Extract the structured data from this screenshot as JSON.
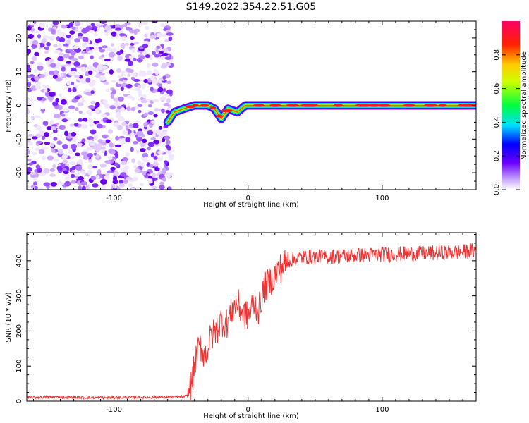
{
  "title": "S149.2022.354.22.51.G05",
  "chart_data": [
    {
      "type": "heatmap",
      "name": "spectrogram",
      "xlabel": "Height of straight line (km)",
      "ylabel": "Frequency (Hz)",
      "xlim": [
        -165,
        170
      ],
      "ylim": [
        -25,
        25
      ],
      "xticks": [
        -100,
        0,
        100
      ],
      "xtick_labels": [
        "-100",
        "0",
        "100"
      ],
      "yticks": [
        -20,
        -10,
        0,
        10,
        20
      ],
      "ytick_labels": [
        "-20",
        "-10",
        "0",
        "10",
        "20"
      ],
      "noise_region_x": [
        -165,
        -57
      ],
      "ridge": [
        {
          "x": -60,
          "y": -5
        },
        {
          "x": -55,
          "y": -2
        },
        {
          "x": -48,
          "y": -1
        },
        {
          "x": -40,
          "y": 0
        },
        {
          "x": -30,
          "y": 0
        },
        {
          "x": -25,
          "y": -1
        },
        {
          "x": -20,
          "y": -4
        },
        {
          "x": -15,
          "y": -1
        },
        {
          "x": -8,
          "y": -2
        },
        {
          "x": -2,
          "y": 0
        },
        {
          "x": 10,
          "y": 0
        },
        {
          "x": 50,
          "y": 0
        },
        {
          "x": 100,
          "y": 0
        },
        {
          "x": 170,
          "y": 0
        }
      ]
    },
    {
      "type": "line",
      "name": "snr",
      "xlabel": "Height of straight line (km)",
      "ylabel": "SNR (10 * v/v)",
      "xlim": [
        -165,
        170
      ],
      "ylim": [
        0,
        480
      ],
      "xticks": [
        -100,
        0,
        100
      ],
      "xtick_labels": [
        "-100",
        "0",
        "100"
      ],
      "yticks": [
        0,
        100,
        200,
        300,
        400
      ],
      "ytick_labels": [
        "0",
        "100",
        "200",
        "300",
        "400"
      ],
      "series": [
        {
          "name": "SNR",
          "color": "#ee3333",
          "x": [
            -165,
            -150,
            -120,
            -80,
            -50,
            -45,
            -42,
            -40,
            -36,
            -32,
            -28,
            -24,
            -20,
            -16,
            -12,
            -8,
            -4,
            0,
            4,
            8,
            12,
            16,
            20,
            24,
            30,
            40,
            60,
            80,
            100,
            120,
            140,
            160,
            170
          ],
          "values": [
            10,
            12,
            10,
            11,
            12,
            15,
            50,
            100,
            160,
            130,
            180,
            200,
            230,
            220,
            260,
            280,
            250,
            240,
            280,
            260,
            320,
            340,
            360,
            380,
            400,
            410,
            412,
            415,
            418,
            420,
            422,
            425,
            430
          ]
        }
      ]
    },
    {
      "type": "colorbar",
      "name": "amplitude-colorbar",
      "label": "Normalized spectral amplitude",
      "range": [
        0,
        1
      ],
      "ticks": [
        0.0,
        0.2,
        0.4,
        0.6,
        0.8
      ],
      "tick_labels": [
        "0.0",
        "0.2",
        "0.4",
        "0.6",
        "0.8"
      ],
      "colors": [
        "#ffffff",
        "#8a2be2",
        "#0000ff",
        "#00ffff",
        "#00ff00",
        "#ffff00",
        "#ff0000",
        "#ff0080"
      ]
    }
  ]
}
